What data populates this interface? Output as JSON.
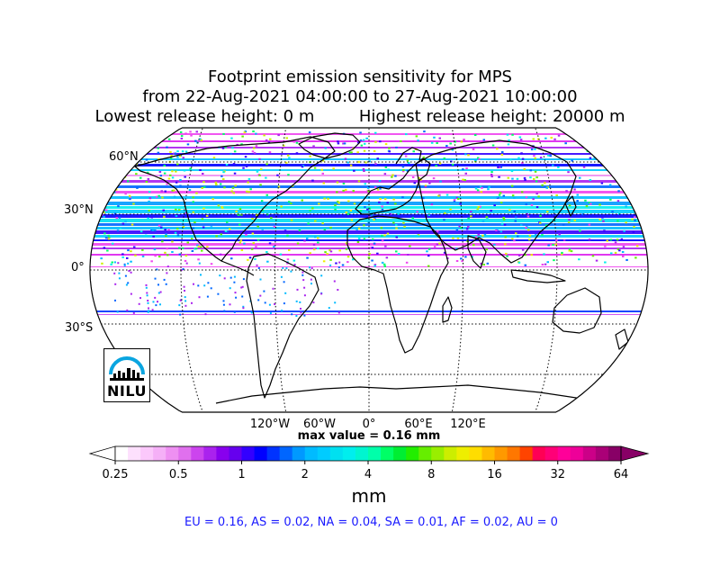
{
  "title": {
    "line1": "Footprint emission sensitivity for MPS",
    "line2": "from 22-Aug-2021 04:00:00 to 27-Aug-2021 10:00:00",
    "line3_left": "Lowest release height: 0 m",
    "line3_right": "Highest release height: 20000 m"
  },
  "map": {
    "projection": "robinson",
    "lat_labels": [
      "60°N",
      "30°N",
      "0°",
      "30°S"
    ],
    "lon_labels": [
      "120°W",
      "60°W",
      "0°",
      "60°E",
      "120°E"
    ],
    "max_value_text": "max value = 0.16 mm",
    "logo_text": "NILU"
  },
  "colorbar": {
    "tick_labels": [
      "0.25",
      "0.5",
      "1",
      "2",
      "4",
      "8",
      "16",
      "32",
      "64"
    ],
    "unit_label": "mm",
    "colors": [
      "#ffffff",
      "#fde0fd",
      "#fbc8fb",
      "#f5b0f7",
      "#ee90f2",
      "#e070ee",
      "#cc44ee",
      "#aa22ee",
      "#8800ee",
      "#6600ee",
      "#3300ff",
      "#0000ff",
      "#0033ff",
      "#0066ff",
      "#0099ff",
      "#00bbff",
      "#00ccff",
      "#00e0f0",
      "#00eeee",
      "#00f5d0",
      "#00ffaa",
      "#00ff66",
      "#00ee33",
      "#22ee00",
      "#66ee00",
      "#99ee00",
      "#ccee00",
      "#eeee00",
      "#ffdd00",
      "#ffbb00",
      "#ff9900",
      "#ff7700",
      "#ff4400",
      "#ff0055",
      "#ff0077",
      "#ff0099",
      "#ee0099",
      "#cc0088",
      "#aa0077",
      "#880066"
    ]
  },
  "regions_text": "EU = 0.16,  AS = 0.02,  NA = 0.04,  SA = 0.01,  AF = 0.02,  AU = 0"
}
